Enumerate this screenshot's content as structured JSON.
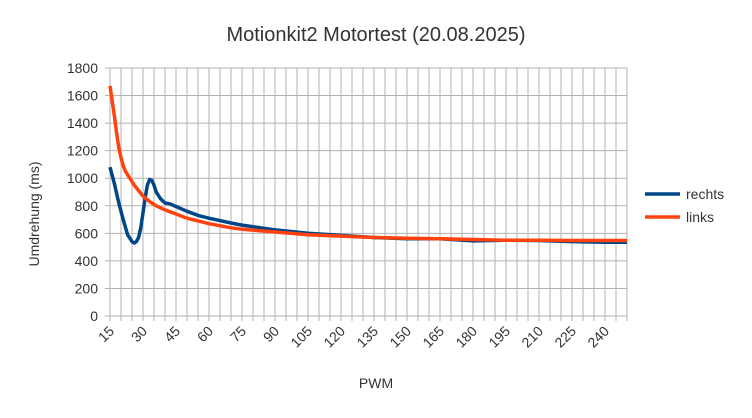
{
  "chart_data": {
    "type": "line",
    "title": "Motionkit2 Motortest (20.08.2025)",
    "xlabel": "PWM",
    "ylabel": "Umdrehung (ms)",
    "xlim": [
      15,
      250
    ],
    "ylim": [
      0,
      1800
    ],
    "x_ticks": [
      15,
      30,
      45,
      60,
      75,
      90,
      105,
      120,
      135,
      150,
      165,
      180,
      195,
      210,
      225,
      240
    ],
    "y_ticks": [
      0,
      200,
      400,
      600,
      800,
      1000,
      1200,
      1400,
      1600,
      1800
    ],
    "grid": true,
    "legend_position": "right",
    "series": [
      {
        "name": "rechts",
        "color": "#004586",
        "x": [
          15,
          17,
          19,
          21,
          23,
          25,
          26,
          27,
          28,
          29,
          30,
          31,
          32,
          33,
          34,
          35,
          36,
          38,
          40,
          42,
          45,
          50,
          55,
          60,
          70,
          75,
          90,
          105,
          120,
          135,
          150,
          165,
          180,
          195,
          210,
          225,
          240,
          250
        ],
        "y": [
          1080,
          960,
          820,
          700,
          590,
          540,
          530,
          540,
          570,
          640,
          750,
          860,
          950,
          990,
          985,
          950,
          900,
          850,
          820,
          815,
          795,
          760,
          730,
          710,
          675,
          660,
          625,
          600,
          585,
          570,
          560,
          560,
          545,
          550,
          548,
          540,
          535,
          535
        ]
      },
      {
        "name": "links",
        "color": "#ff420e",
        "x": [
          15,
          16,
          17,
          18,
          19,
          20,
          21,
          22,
          24,
          26,
          28,
          30,
          33,
          36,
          40,
          45,
          50,
          55,
          60,
          70,
          75,
          90,
          105,
          120,
          135,
          150,
          165,
          180,
          195,
          210,
          225,
          240,
          250
        ],
        "y": [
          1670,
          1560,
          1450,
          1330,
          1220,
          1150,
          1090,
          1050,
          1000,
          950,
          910,
          870,
          830,
          800,
          770,
          740,
          710,
          690,
          670,
          640,
          630,
          610,
          590,
          580,
          570,
          565,
          560,
          555,
          550,
          550,
          548,
          548,
          548
        ]
      }
    ]
  }
}
